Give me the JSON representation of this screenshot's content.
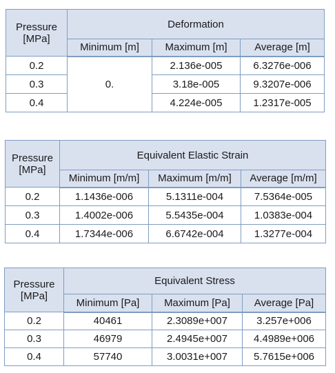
{
  "tables": [
    {
      "pressure_label": "Pressure [MPa]",
      "group_label": "Deformation",
      "col_min": "Minimum [m]",
      "col_max": "Maximum [m]",
      "col_avg": "Average [m]",
      "merged_min": "0.",
      "rows": [
        {
          "pressure": "0.2",
          "max": "2.136e-005",
          "avg": "6.3276e-006"
        },
        {
          "pressure": "0.3",
          "max": "3.18e-005",
          "avg": "9.3207e-006"
        },
        {
          "pressure": "0.4",
          "max": "4.224e-005",
          "avg": "1.2317e-005"
        }
      ]
    },
    {
      "pressure_label": "Pressure [MPa]",
      "group_label": "Equivalent Elastic Strain",
      "col_min": "Minimum [m/m]",
      "col_max": "Maximum [m/m]",
      "col_avg": "Average [m/m]",
      "rows": [
        {
          "pressure": "0.2",
          "min": "1.1436e-006",
          "max": "5.1311e-004",
          "avg": "7.5364e-005"
        },
        {
          "pressure": "0.3",
          "min": "1.4002e-006",
          "max": "5.5435e-004",
          "avg": "1.0383e-004"
        },
        {
          "pressure": "0.4",
          "min": "1.7344e-006",
          "max": "6.6742e-004",
          "avg": "1.3277e-004"
        }
      ]
    },
    {
      "pressure_label": "Pressure [MPa]",
      "group_label": "Equivalent Stress",
      "col_min": "Minimum [Pa]",
      "col_max": "Maximum [Pa]",
      "col_avg": "Average [Pa]",
      "rows": [
        {
          "pressure": "0.2",
          "min": "40461",
          "max": "2.3089e+007",
          "avg": "3.257e+006"
        },
        {
          "pressure": "0.3",
          "min": "46979",
          "max": "2.4945e+007",
          "avg": "4.4989e+006"
        },
        {
          "pressure": "0.4",
          "min": "57740",
          "max": "3.0031e+007",
          "avg": "5.7615e+006"
        }
      ]
    }
  ]
}
